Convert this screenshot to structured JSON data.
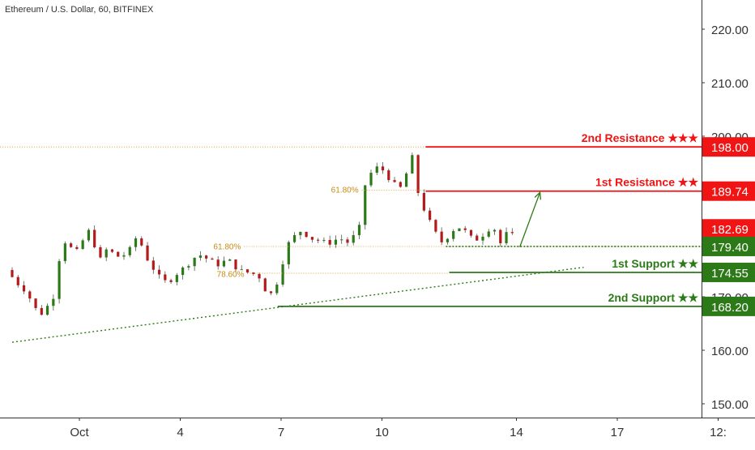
{
  "header": {
    "symbol_title": "Ethereum / U.S. Dollar, 60, BITFINEX"
  },
  "chart_data": {
    "type": "candlestick",
    "ylim": [
      145,
      225
    ],
    "y_ticks": [
      {
        "value": 220,
        "label": "220.00"
      },
      {
        "value": 210,
        "label": "210.00"
      },
      {
        "value": 200,
        "label": "200.00"
      },
      {
        "value": 170,
        "label": "170.00"
      },
      {
        "value": 160,
        "label": "160.00"
      },
      {
        "value": 150,
        "label": "150.00"
      }
    ],
    "x_ticks": [
      {
        "day": 1,
        "label": "Oct"
      },
      {
        "day": 4,
        "label": "4"
      },
      {
        "day": 7,
        "label": "7"
      },
      {
        "day": 10,
        "label": "10"
      },
      {
        "day": 14,
        "label": "14"
      },
      {
        "day": 17,
        "label": "17"
      },
      {
        "day": 20,
        "label": "12:"
      }
    ],
    "price_tags": [
      {
        "value": 198.0,
        "label": "198.00",
        "color": "#f01414"
      },
      {
        "value": 189.74,
        "label": "189.74",
        "color": "#f01414"
      },
      {
        "value": 182.69,
        "label": "182.69",
        "color": "#f01414"
      },
      {
        "value": 179.4,
        "label": "179.40",
        "color": "#2c7a17"
      },
      {
        "value": 174.55,
        "label": "174.55",
        "color": "#2c7a17"
      },
      {
        "value": 168.2,
        "label": "168.20",
        "color": "#2c7a17"
      }
    ],
    "levels": [
      {
        "name": "2nd Resistance ★★★",
        "value": 198.0,
        "from_day": 11.3,
        "color": "#f01414"
      },
      {
        "name": "1st Resistance ★★",
        "value": 189.74,
        "from_day": 11.3,
        "color": "#f01414"
      },
      {
        "name": "1st Support ★★",
        "value": 174.55,
        "from_day": 12.0,
        "color": "#2c7a17"
      },
      {
        "name": "2nd Support ★★",
        "value": 168.2,
        "from_day": 6.9,
        "color": "#2c7a17"
      }
    ],
    "fib_labels": [
      {
        "label": "61.80%",
        "day": 9.4,
        "value": 189.9,
        "color": "#c98a13"
      },
      {
        "label": "61.80%",
        "day": 5.9,
        "value": 179.3,
        "color": "#c98a13"
      },
      {
        "label": "78.60%",
        "day": 6.0,
        "value": 174.2,
        "color": "#c98a13"
      }
    ],
    "price_path": [
      {
        "day": -1.0,
        "price": 175.0
      },
      {
        "day": -0.8,
        "price": 173.5
      },
      {
        "day": -0.6,
        "price": 172.0
      },
      {
        "day": -0.4,
        "price": 171.0
      },
      {
        "day": -0.2,
        "price": 168.5
      },
      {
        "day": 0.0,
        "price": 166.5
      },
      {
        "day": 0.2,
        "price": 168.0
      },
      {
        "day": 0.4,
        "price": 170.0
      },
      {
        "day": 0.6,
        "price": 178.0
      },
      {
        "day": 0.8,
        "price": 181.0
      },
      {
        "day": 1.0,
        "price": 178.0
      },
      {
        "day": 1.2,
        "price": 179.0
      },
      {
        "day": 1.4,
        "price": 183.0
      },
      {
        "day": 1.6,
        "price": 180.0
      },
      {
        "day": 1.8,
        "price": 177.0
      },
      {
        "day": 2.0,
        "price": 179.0
      },
      {
        "day": 2.3,
        "price": 177.5
      },
      {
        "day": 2.6,
        "price": 178.0
      },
      {
        "day": 2.9,
        "price": 181.5
      },
      {
        "day": 3.2,
        "price": 177.0
      },
      {
        "day": 3.5,
        "price": 174.0
      },
      {
        "day": 3.8,
        "price": 172.5
      },
      {
        "day": 4.1,
        "price": 174.5
      },
      {
        "day": 4.4,
        "price": 176.0
      },
      {
        "day": 4.7,
        "price": 178.0
      },
      {
        "day": 5.0,
        "price": 177.0
      },
      {
        "day": 5.3,
        "price": 176.0
      },
      {
        "day": 5.6,
        "price": 177.0
      },
      {
        "day": 5.9,
        "price": 175.0
      },
      {
        "day": 6.2,
        "price": 174.5
      },
      {
        "day": 6.5,
        "price": 174.0
      },
      {
        "day": 6.8,
        "price": 170.0
      },
      {
        "day": 7.0,
        "price": 171.5
      },
      {
        "day": 7.2,
        "price": 176.0
      },
      {
        "day": 7.4,
        "price": 180.0
      },
      {
        "day": 7.6,
        "price": 181.5
      },
      {
        "day": 7.8,
        "price": 182.5
      },
      {
        "day": 8.0,
        "price": 181.0
      },
      {
        "day": 8.3,
        "price": 180.5
      },
      {
        "day": 8.6,
        "price": 180.0
      },
      {
        "day": 8.9,
        "price": 181.0
      },
      {
        "day": 9.2,
        "price": 180.0
      },
      {
        "day": 9.5,
        "price": 183.0
      },
      {
        "day": 9.7,
        "price": 192.0
      },
      {
        "day": 9.9,
        "price": 193.5
      },
      {
        "day": 10.1,
        "price": 194.5
      },
      {
        "day": 10.4,
        "price": 192.0
      },
      {
        "day": 10.7,
        "price": 190.0
      },
      {
        "day": 10.9,
        "price": 193.0
      },
      {
        "day": 11.1,
        "price": 196.5
      },
      {
        "day": 11.25,
        "price": 189.5
      },
      {
        "day": 11.5,
        "price": 185.0
      },
      {
        "day": 11.7,
        "price": 183.0
      },
      {
        "day": 11.9,
        "price": 180.0
      },
      {
        "day": 12.1,
        "price": 181.0
      },
      {
        "day": 12.3,
        "price": 182.5
      },
      {
        "day": 12.5,
        "price": 183.0
      },
      {
        "day": 12.7,
        "price": 182.0
      },
      {
        "day": 12.9,
        "price": 180.5
      },
      {
        "day": 13.1,
        "price": 181.0
      },
      {
        "day": 13.3,
        "price": 182.5
      },
      {
        "day": 13.5,
        "price": 183.0
      },
      {
        "day": 13.7,
        "price": 180.0
      },
      {
        "day": 13.9,
        "price": 182.0
      },
      {
        "day": 14.05,
        "price": 181.5
      }
    ],
    "trendline": {
      "from": {
        "day": -1.0,
        "price": 161.5
      },
      "to": {
        "day": 16.0,
        "price": 175.5
      },
      "color": "#2c7a17"
    },
    "projection_arrow": {
      "from": {
        "day": 14.1,
        "price": 179.3
      },
      "to": {
        "day": 14.7,
        "price": 189.5
      },
      "color": "#2c7a17"
    },
    "grid": false,
    "colors": {
      "up": "#2c7a17",
      "down": "#b31b1b",
      "axis": "#333333"
    }
  }
}
